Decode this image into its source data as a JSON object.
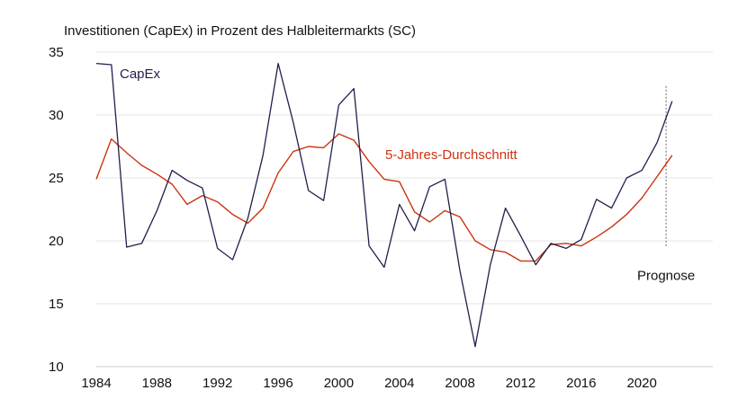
{
  "chart_data": {
    "type": "line",
    "title": "Investitionen (CapEx) in Prozent des Halbleitermarkts (SC)",
    "xlabel": "",
    "ylabel": "",
    "xlim": [
      1984,
      2022.5
    ],
    "ylim": [
      10,
      35
    ],
    "x_ticks": [
      1984,
      1988,
      1992,
      1996,
      2000,
      2004,
      2008,
      2012,
      2016,
      2020
    ],
    "y_ticks": [
      10,
      15,
      20,
      25,
      30,
      35
    ],
    "grid": "horizontal",
    "x": [
      1984,
      1985,
      1986,
      1987,
      1988,
      1989,
      1990,
      1991,
      1992,
      1993,
      1994,
      1995,
      1996,
      1997,
      1998,
      1999,
      2000,
      2001,
      2002,
      2003,
      2004,
      2005,
      2006,
      2007,
      2008,
      2009,
      2010,
      2011,
      2012,
      2013,
      2014,
      2015,
      2016,
      2017,
      2018,
      2019,
      2020,
      2021,
      2022
    ],
    "series": [
      {
        "name": "CapEx",
        "color": "#1f1f4d",
        "values": [
          34.1,
          34.0,
          19.5,
          19.8,
          22.4,
          25.6,
          24.8,
          24.2,
          19.4,
          18.5,
          21.8,
          26.8,
          34.1,
          29.4,
          24.0,
          23.2,
          30.8,
          32.1,
          19.6,
          17.9,
          22.9,
          20.8,
          24.3,
          24.9,
          17.6,
          11.6,
          18.1,
          22.6,
          20.4,
          18.1,
          19.8,
          19.4,
          20.1,
          23.3,
          22.6,
          25.0,
          25.6,
          27.8,
          31.1
        ]
      },
      {
        "name": "5-Jahres-Durchschnitt",
        "color": "#cc3311",
        "values": [
          24.9,
          28.1,
          27.0,
          26.0,
          25.3,
          24.5,
          22.9,
          23.6,
          23.1,
          22.1,
          21.4,
          22.6,
          25.4,
          27.1,
          27.5,
          27.4,
          28.5,
          28.0,
          26.3,
          24.9,
          24.7,
          22.3,
          21.5,
          22.4,
          21.9,
          20.0,
          19.3,
          19.1,
          18.4,
          18.4,
          19.7,
          19.8,
          19.6,
          20.3,
          21.1,
          22.1,
          23.4,
          25.1,
          26.8
        ]
      }
    ],
    "annotations": [
      {
        "text": "Prognose",
        "x": 2021.6,
        "style": "vertical dotted line"
      }
    ],
    "colors": {
      "capex": "#1f1f4d",
      "average": "#cc3311",
      "grid": "#e6e6e6",
      "forecast_line": "#888888"
    }
  }
}
